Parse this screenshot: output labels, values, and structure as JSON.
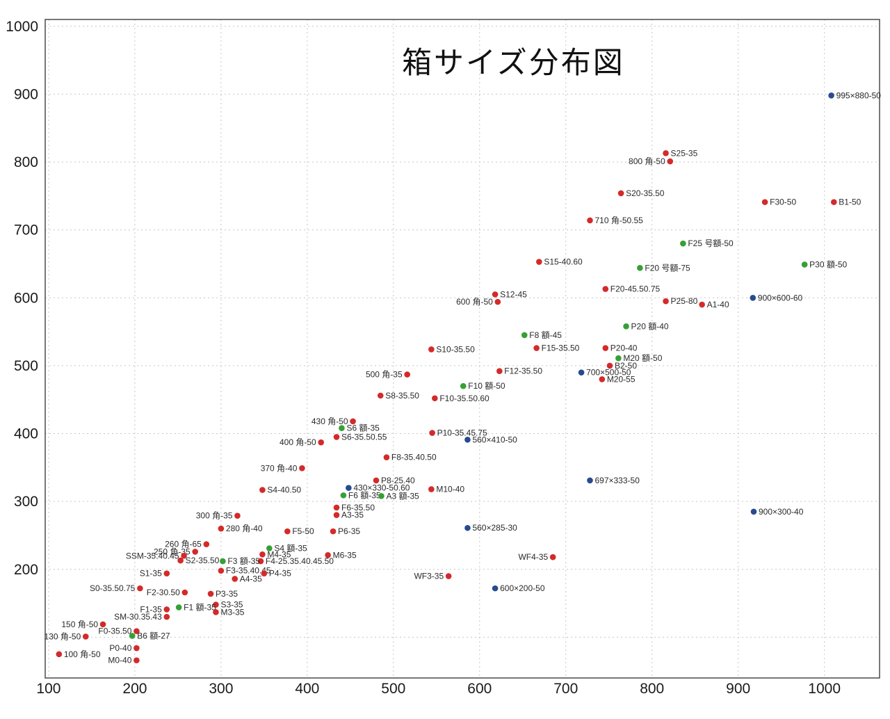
{
  "colors": {
    "red": "#d42a2a",
    "green": "#35a035",
    "blue": "#274b8e",
    "grid": "#c6c6c6",
    "axis": "#4a4a4a",
    "tick": "#1a1a1a",
    "point_label": "#2a2a2a"
  },
  "chart_data": {
    "type": "scatter",
    "title": "箱サイズ分布図",
    "xlabel": "",
    "ylabel": "",
    "xlim": [
      96,
      1064
    ],
    "ylim": [
      40,
      1010
    ],
    "grid": true,
    "legend": "none",
    "x_ticks": [
      100,
      200,
      300,
      400,
      500,
      600,
      700,
      800,
      900,
      1000
    ],
    "y_ticks": [
      200,
      300,
      400,
      500,
      600,
      700,
      800,
      900,
      1000
    ],
    "y_grid": [
      100,
      200,
      300,
      400,
      500,
      600,
      700,
      800,
      900,
      1000
    ],
    "points": [
      {
        "label": "995×880-50",
        "x": 1008,
        "y": 898,
        "c": "blue",
        "side": "right"
      },
      {
        "label": "S25-35",
        "x": 816,
        "y": 813,
        "c": "red",
        "side": "right"
      },
      {
        "label": "800 角-50",
        "x": 821,
        "y": 801,
        "c": "red",
        "side": "left"
      },
      {
        "label": "S20-35.50",
        "x": 764,
        "y": 754,
        "c": "red",
        "side": "right"
      },
      {
        "label": "F30-50",
        "x": 931,
        "y": 741,
        "c": "red",
        "side": "right"
      },
      {
        "label": "B1-50",
        "x": 1011,
        "y": 741,
        "c": "red",
        "side": "right"
      },
      {
        "label": "710 角-50.55",
        "x": 728,
        "y": 714,
        "c": "red",
        "side": "right"
      },
      {
        "label": "F25 号額-50",
        "x": 836,
        "y": 680,
        "c": "green",
        "side": "right"
      },
      {
        "label": "S15-40.60",
        "x": 669,
        "y": 653,
        "c": "red",
        "side": "right"
      },
      {
        "label": "F20 号額-75",
        "x": 786,
        "y": 644,
        "c": "green",
        "side": "right"
      },
      {
        "label": "P30 額-50",
        "x": 977,
        "y": 649,
        "c": "green",
        "side": "right"
      },
      {
        "label": "F20-45.50.75",
        "x": 746,
        "y": 613,
        "c": "red",
        "side": "right"
      },
      {
        "label": "S12-45",
        "x": 618,
        "y": 605,
        "c": "red",
        "side": "right"
      },
      {
        "label": "600 角-50",
        "x": 621,
        "y": 594,
        "c": "red",
        "side": "left"
      },
      {
        "label": "P25-80",
        "x": 816,
        "y": 595,
        "c": "red",
        "side": "right"
      },
      {
        "label": "A1-40",
        "x": 858,
        "y": 590,
        "c": "red",
        "side": "right"
      },
      {
        "label": "900×600-60",
        "x": 917,
        "y": 600,
        "c": "blue",
        "side": "right"
      },
      {
        "label": "P20 額-40",
        "x": 770,
        "y": 558,
        "c": "green",
        "side": "right"
      },
      {
        "label": "F8 額-45",
        "x": 652,
        "y": 545,
        "c": "green",
        "side": "right"
      },
      {
        "label": "S10-35.50",
        "x": 544,
        "y": 524,
        "c": "red",
        "side": "right"
      },
      {
        "label": "F15-35.50",
        "x": 666,
        "y": 526,
        "c": "red",
        "side": "right"
      },
      {
        "label": "P20-40",
        "x": 746,
        "y": 526,
        "c": "red",
        "side": "right"
      },
      {
        "label": "M20 額-50",
        "x": 761,
        "y": 511,
        "c": "green",
        "side": "right"
      },
      {
        "label": "B2-50",
        "x": 751,
        "y": 500,
        "c": "red",
        "side": "right"
      },
      {
        "label": "F12-35.50",
        "x": 623,
        "y": 492,
        "c": "red",
        "side": "right"
      },
      {
        "label": "500 角-35",
        "x": 516,
        "y": 487,
        "c": "red",
        "side": "left"
      },
      {
        "label": "700×500-50",
        "x": 718,
        "y": 490,
        "c": "blue",
        "side": "right"
      },
      {
        "label": "M20-55",
        "x": 742,
        "y": 480,
        "c": "red",
        "side": "right"
      },
      {
        "label": "F10 額-50",
        "x": 581,
        "y": 470,
        "c": "green",
        "side": "right"
      },
      {
        "label": "S8-35.50",
        "x": 485,
        "y": 456,
        "c": "red",
        "side": "right"
      },
      {
        "label": "F10-35.50.60",
        "x": 548,
        "y": 452,
        "c": "red",
        "side": "right"
      },
      {
        "label": "430 角-50",
        "x": 453,
        "y": 418,
        "c": "red",
        "side": "left"
      },
      {
        "label": "S6 額-35",
        "x": 440,
        "y": 408,
        "c": "green",
        "side": "right"
      },
      {
        "label": "S6-35.50.55",
        "x": 434,
        "y": 395,
        "c": "red",
        "side": "right"
      },
      {
        "label": "400 角-50",
        "x": 416,
        "y": 387,
        "c": "red",
        "side": "left"
      },
      {
        "label": "P10-35.45.75",
        "x": 545,
        "y": 401,
        "c": "red",
        "side": "right"
      },
      {
        "label": "560×410-50",
        "x": 586,
        "y": 391,
        "c": "blue",
        "side": "right"
      },
      {
        "label": "F8-35.40.50",
        "x": 492,
        "y": 365,
        "c": "red",
        "side": "right"
      },
      {
        "label": "370 角-40",
        "x": 394,
        "y": 349,
        "c": "red",
        "side": "left"
      },
      {
        "label": "P8-25.40",
        "x": 480,
        "y": 331,
        "c": "red",
        "side": "right"
      },
      {
        "label": "697×333-50",
        "x": 728,
        "y": 331,
        "c": "blue",
        "side": "right"
      },
      {
        "label": "S4-40.50",
        "x": 348,
        "y": 317,
        "c": "red",
        "side": "right"
      },
      {
        "label": "430×330-50.60",
        "x": 448,
        "y": 320,
        "c": "blue",
        "side": "right"
      },
      {
        "label": "M10-40",
        "x": 544,
        "y": 318,
        "c": "red",
        "side": "right"
      },
      {
        "label": "F6 額-35",
        "x": 442,
        "y": 309,
        "c": "green",
        "side": "right"
      },
      {
        "label": "A3 額-35",
        "x": 486,
        "y": 308,
        "c": "green",
        "side": "right"
      },
      {
        "label": "F6-35.50",
        "x": 434,
        "y": 291,
        "c": "red",
        "side": "right"
      },
      {
        "label": "A3-35",
        "x": 434,
        "y": 280,
        "c": "red",
        "side": "right"
      },
      {
        "label": "900×300-40",
        "x": 918,
        "y": 285,
        "c": "blue",
        "side": "right"
      },
      {
        "label": "300 角-35",
        "x": 319,
        "y": 279,
        "c": "red",
        "side": "left"
      },
      {
        "label": "280 角-40",
        "x": 300,
        "y": 260,
        "c": "red",
        "side": "right"
      },
      {
        "label": "F5-50",
        "x": 377,
        "y": 256,
        "c": "red",
        "side": "right"
      },
      {
        "label": "P6-35",
        "x": 430,
        "y": 256,
        "c": "red",
        "side": "right"
      },
      {
        "label": "560×285-30",
        "x": 586,
        "y": 261,
        "c": "blue",
        "side": "right"
      },
      {
        "label": "260 角-65",
        "x": 283,
        "y": 237,
        "c": "red",
        "side": "left"
      },
      {
        "label": "S4 額-35",
        "x": 356,
        "y": 231,
        "c": "green",
        "side": "right"
      },
      {
        "label": "250 角-35",
        "x": 270,
        "y": 226,
        "c": "red",
        "side": "left"
      },
      {
        "label": "SSM-35.40.45",
        "x": 257,
        "y": 220,
        "c": "red",
        "side": "left"
      },
      {
        "label": "S2-35.50",
        "x": 253,
        "y": 213,
        "c": "red",
        "side": "right"
      },
      {
        "label": "M4-35",
        "x": 348,
        "y": 222,
        "c": "red",
        "side": "right"
      },
      {
        "label": "F4-25.35.40.45.50",
        "x": 346,
        "y": 212,
        "c": "red",
        "side": "right"
      },
      {
        "label": "M6-35",
        "x": 424,
        "y": 221,
        "c": "red",
        "side": "right"
      },
      {
        "label": "F3 額-35",
        "x": 302,
        "y": 212,
        "c": "green",
        "side": "right"
      },
      {
        "label": "S1-35",
        "x": 237,
        "y": 194,
        "c": "red",
        "side": "left"
      },
      {
        "label": "F3-35.40.45",
        "x": 300,
        "y": 198,
        "c": "red",
        "side": "right"
      },
      {
        "label": "P4-35",
        "x": 350,
        "y": 194,
        "c": "red",
        "side": "right"
      },
      {
        "label": "A4-35",
        "x": 316,
        "y": 186,
        "c": "red",
        "side": "right"
      },
      {
        "label": "WF4-35",
        "x": 685,
        "y": 218,
        "c": "red",
        "side": "left"
      },
      {
        "label": "WF3-35",
        "x": 564,
        "y": 190,
        "c": "red",
        "side": "left"
      },
      {
        "label": "S0-35.50.75",
        "x": 206,
        "y": 172,
        "c": "red",
        "side": "left"
      },
      {
        "label": "F2-30.50",
        "x": 258,
        "y": 166,
        "c": "red",
        "side": "left"
      },
      {
        "label": "P3-35",
        "x": 288,
        "y": 164,
        "c": "red",
        "side": "right"
      },
      {
        "label": "600×200-50",
        "x": 618,
        "y": 172,
        "c": "blue",
        "side": "right"
      },
      {
        "label": "S3-35",
        "x": 294,
        "y": 148,
        "c": "red",
        "side": "right"
      },
      {
        "label": "F1 額-35",
        "x": 251,
        "y": 144,
        "c": "green",
        "side": "right"
      },
      {
        "label": "F1-35",
        "x": 237,
        "y": 141,
        "c": "red",
        "side": "left"
      },
      {
        "label": "M3-35",
        "x": 294,
        "y": 137,
        "c": "red",
        "side": "right"
      },
      {
        "label": "SM-30.35.43",
        "x": 237,
        "y": 130,
        "c": "red",
        "side": "left"
      },
      {
        "label": "150 角-50",
        "x": 163,
        "y": 119,
        "c": "red",
        "side": "left"
      },
      {
        "label": "F0-35.50",
        "x": 202,
        "y": 109,
        "c": "red",
        "side": "left"
      },
      {
        "label": "B6 額-27",
        "x": 197,
        "y": 102,
        "c": "green",
        "side": "right"
      },
      {
        "label": "130 角-50",
        "x": 143,
        "y": 101,
        "c": "red",
        "side": "left"
      },
      {
        "label": "P0-40",
        "x": 202,
        "y": 84,
        "c": "red",
        "side": "left"
      },
      {
        "label": "100 角-50",
        "x": 112,
        "y": 75,
        "c": "red",
        "side": "right"
      },
      {
        "label": "M0-40",
        "x": 202,
        "y": 66,
        "c": "red",
        "side": "left"
      }
    ]
  }
}
